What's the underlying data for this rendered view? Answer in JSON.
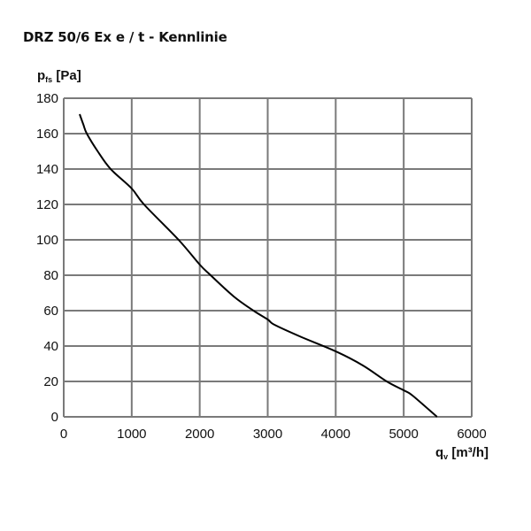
{
  "title": "DRZ 50/6 Ex e / t - Kennlinie",
  "y_axis": {
    "symbol": "p",
    "subscript": "fs",
    "unit": "[Pa]"
  },
  "x_axis": {
    "symbol": "q",
    "subscript": "v",
    "unit": "[m³/h]"
  },
  "colors": {
    "grid": "#7a7a7a",
    "curve": "#000000",
    "text": "#111111"
  },
  "chart_data": {
    "type": "line",
    "title": "DRZ 50/6 Ex e / t - Kennlinie",
    "xlabel": "q_v [m³/h]",
    "ylabel": "p_fs [Pa]",
    "xlim": [
      0,
      6000
    ],
    "ylim": [
      0,
      180
    ],
    "x_ticks": [
      0,
      1000,
      2000,
      3000,
      4000,
      5000,
      6000
    ],
    "y_ticks": [
      0,
      20,
      40,
      60,
      80,
      100,
      120,
      140,
      160,
      180
    ],
    "grid": true,
    "legend": null,
    "series": [
      {
        "name": "Kennlinie",
        "x": [
          234,
          290,
          340,
          500,
          690,
          1000,
          1180,
          1690,
          2000,
          2160,
          2500,
          2790,
          3000,
          3100,
          3500,
          4000,
          4400,
          4750,
          5000,
          5130,
          5490
        ],
        "y": [
          171,
          165,
          160,
          150,
          140,
          129,
          120,
          100,
          86,
          80,
          68,
          60,
          55,
          52,
          45,
          37,
          29,
          20,
          15,
          12,
          0
        ]
      }
    ]
  }
}
